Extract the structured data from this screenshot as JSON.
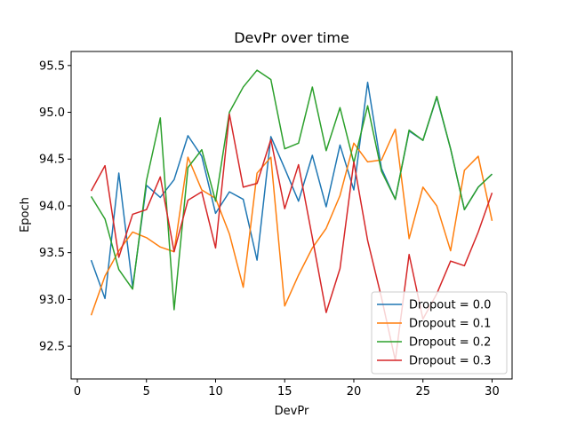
{
  "chart_data": {
    "type": "line",
    "title": "DevPr over time",
    "xlabel": "DevPr",
    "ylabel": "Epoch",
    "xlim": [
      -0.45,
      31.45
    ],
    "ylim": [
      92.15,
      95.65
    ],
    "xticks": [
      0,
      5,
      10,
      15,
      20,
      25,
      30
    ],
    "yticks": [
      92.5,
      93.0,
      93.5,
      94.0,
      94.5,
      95.0,
      95.5
    ],
    "ytick_labels": [
      "92.5",
      "93.0",
      "93.5",
      "94.0",
      "94.5",
      "95.0",
      "95.5"
    ],
    "grid": false,
    "legend_position": "lower right",
    "x": [
      1,
      2,
      3,
      4,
      5,
      6,
      7,
      8,
      9,
      10,
      11,
      12,
      13,
      14,
      15,
      16,
      17,
      18,
      19,
      20,
      21,
      22,
      23,
      24,
      25,
      26,
      27,
      28,
      29,
      30
    ],
    "series": [
      {
        "name": "Dropout = 0.0",
        "color": "#1f77b4",
        "values": [
          93.42,
          93.01,
          94.35,
          93.13,
          94.22,
          94.09,
          94.28,
          94.75,
          94.53,
          93.92,
          94.15,
          94.07,
          93.42,
          94.74,
          94.4,
          94.05,
          94.54,
          93.99,
          94.65,
          94.17,
          95.32,
          94.4,
          94.07,
          94.8,
          94.7,
          95.16,
          94.61,
          93.96,
          94.2,
          94.34
        ]
      },
      {
        "name": "Dropout = 0.1",
        "color": "#ff7f0e",
        "values": [
          92.83,
          93.25,
          93.52,
          93.72,
          93.66,
          93.56,
          93.51,
          94.52,
          94.17,
          94.08,
          93.7,
          93.13,
          94.35,
          94.52,
          92.93,
          93.26,
          93.55,
          93.76,
          94.11,
          94.67,
          94.47,
          94.49,
          94.82,
          93.65,
          94.2,
          94.0,
          93.52,
          94.38,
          94.53,
          93.84
        ]
      },
      {
        "name": "Dropout = 0.2",
        "color": "#2ca02c",
        "values": [
          94.1,
          93.86,
          93.32,
          93.11,
          94.27,
          94.94,
          92.89,
          94.41,
          94.6,
          94.05,
          95.0,
          95.27,
          95.45,
          95.35,
          94.61,
          94.67,
          95.27,
          94.59,
          95.05,
          94.46,
          95.07,
          94.37,
          94.07,
          94.81,
          94.7,
          95.17,
          94.61,
          93.96,
          94.2,
          94.34
        ]
      },
      {
        "name": "Dropout = 0.3",
        "color": "#d62728",
        "values": [
          94.16,
          94.43,
          93.45,
          93.91,
          93.96,
          94.31,
          93.51,
          94.06,
          94.15,
          93.55,
          94.98,
          94.2,
          94.24,
          94.71,
          93.97,
          94.44,
          93.66,
          92.86,
          93.33,
          94.47,
          93.63,
          93.02,
          92.35,
          93.48,
          92.79,
          93.06,
          93.41,
          93.36,
          93.72,
          94.14
        ]
      }
    ]
  }
}
